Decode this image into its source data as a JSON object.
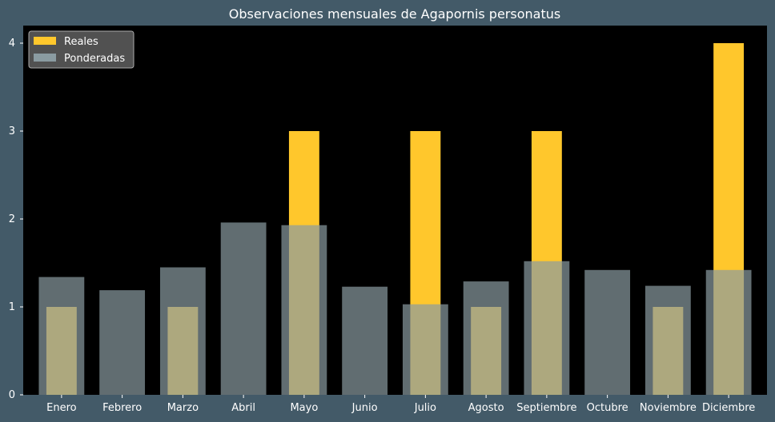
{
  "chart_data": {
    "type": "bar",
    "title": "Observaciones mensuales de Agapornis personatus",
    "xlabel": "",
    "ylabel": "",
    "categories": [
      "Enero",
      "Febrero",
      "Marzo",
      "Abril",
      "Mayo",
      "Junio",
      "Julio",
      "Agosto",
      "Septiembre",
      "Octubre",
      "Noviembre",
      "Diciembre"
    ],
    "series": [
      {
        "name": "Reales",
        "color": "#ffc72c",
        "values": [
          1,
          0,
          1,
          0,
          3,
          0,
          3,
          1,
          3,
          0,
          1,
          4
        ]
      },
      {
        "name": "Ponderadas",
        "color": "#8a9ba1",
        "opacity": 0.7,
        "values": [
          1.34,
          1.19,
          1.45,
          1.96,
          1.93,
          1.23,
          1.03,
          1.29,
          1.52,
          1.42,
          1.24,
          1.42
        ]
      }
    ],
    "ylim": [
      0,
      4.2
    ],
    "yticks": [
      0,
      1,
      2,
      3,
      4
    ],
    "grid": false,
    "legend_position": "top-left",
    "plot_background": "#000000",
    "figure_background": "#435a68"
  }
}
